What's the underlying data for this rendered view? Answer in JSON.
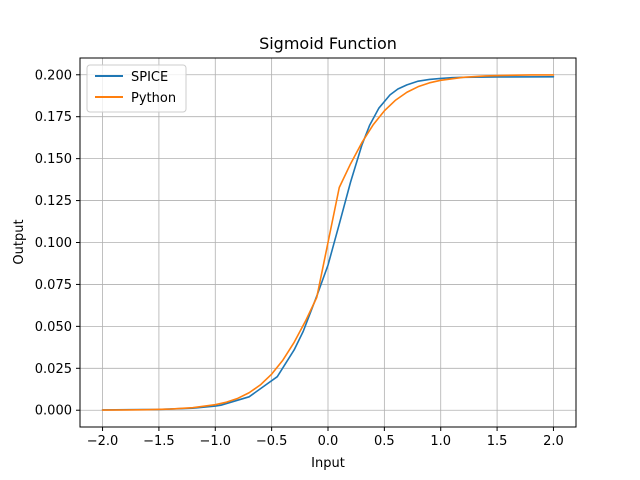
{
  "chart_data": {
    "type": "line",
    "title": "Sigmoid Function",
    "xlabel": "Input",
    "ylabel": "Output",
    "xlim": [
      -2.2,
      2.2
    ],
    "ylim": [
      -0.01,
      0.21
    ],
    "x_ticks": [
      -2.0,
      -1.5,
      -1.0,
      -0.5,
      0.0,
      0.5,
      1.0,
      1.5,
      2.0
    ],
    "x_tick_labels": [
      "−2.0",
      "−1.5",
      "−1.0",
      "−0.5",
      "0.0",
      "0.5",
      "1.0",
      "1.5",
      "2.0"
    ],
    "y_ticks": [
      0.0,
      0.025,
      0.05,
      0.075,
      0.1,
      0.125,
      0.15,
      0.175,
      0.2
    ],
    "y_tick_labels": [
      "0.000",
      "0.025",
      "0.050",
      "0.075",
      "0.100",
      "0.125",
      "0.150",
      "0.175",
      "0.200"
    ],
    "grid": true,
    "legend_position": "upper-left",
    "series": [
      {
        "name": "SPICE",
        "color": "#1f77b4",
        "x": [
          -2.0,
          -1.5,
          -1.2,
          -1.0,
          -0.95,
          -0.7,
          -0.45,
          -0.3,
          -0.22,
          -0.1,
          0.0,
          0.1,
          0.2,
          0.3,
          0.37,
          0.45,
          0.55,
          0.62,
          0.7,
          0.8,
          0.9,
          1.0,
          1.1,
          1.2,
          1.5,
          2.0
        ],
        "y": [
          0.0002,
          0.0005,
          0.0012,
          0.0025,
          0.003,
          0.008,
          0.02,
          0.036,
          0.047,
          0.068,
          0.0865,
          0.111,
          0.136,
          0.158,
          0.17,
          0.18,
          0.188,
          0.1915,
          0.194,
          0.1962,
          0.1972,
          0.1978,
          0.1983,
          0.1985,
          0.1987,
          0.1988
        ]
      },
      {
        "name": "Python",
        "color": "#ff7f0e",
        "x": [
          -2.0,
          -1.8,
          -1.6,
          -1.4,
          -1.2,
          -1.0,
          -0.9,
          -0.8,
          -0.7,
          -0.6,
          -0.5,
          -0.4,
          -0.3,
          -0.2,
          -0.1,
          0.0,
          0.1,
          0.2,
          0.3,
          0.4,
          0.5,
          0.6,
          0.7,
          0.8,
          0.9,
          1.0,
          1.2,
          1.4,
          1.6,
          1.8,
          2.0
        ],
        "y": [
          7e-05,
          0.00015,
          0.00033,
          0.0007,
          0.0015,
          0.0033,
          0.0048,
          0.0071,
          0.0104,
          0.0151,
          0.0215,
          0.0299,
          0.0405,
          0.0531,
          0.0672,
          0.1,
          0.1328,
          0.1469,
          0.1595,
          0.1701,
          0.1785,
          0.1849,
          0.1896,
          0.1929,
          0.1952,
          0.1967,
          0.1985,
          0.1993,
          0.1997,
          0.1999,
          0.1999
        ]
      }
    ]
  }
}
